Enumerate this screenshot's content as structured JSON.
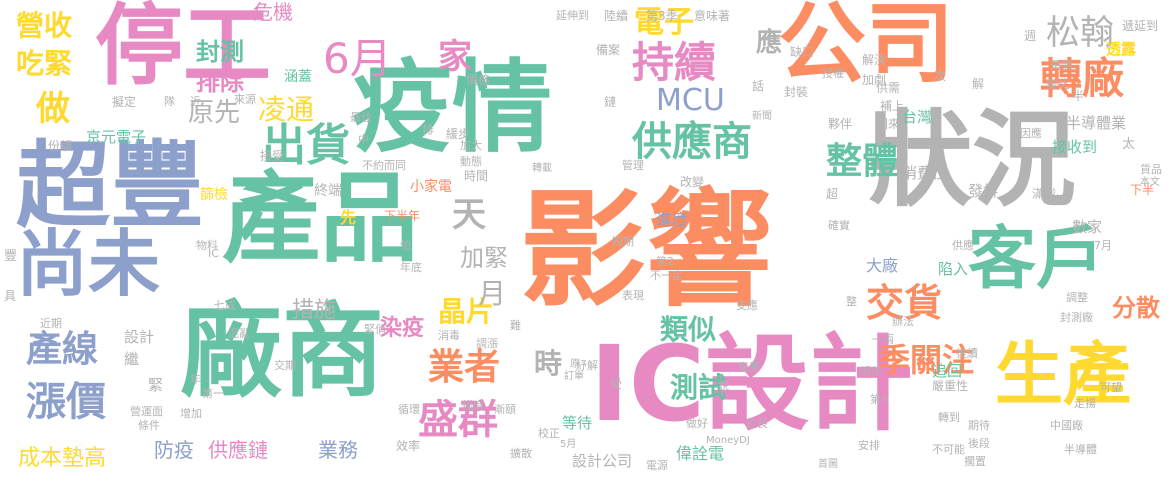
{
  "palette": {
    "green": "#66c2a5",
    "orange": "#fc8d62",
    "blue": "#8da0cb",
    "pink": "#e78ac3",
    "lime": "#a6d854",
    "yellow": "#ffd92f",
    "tan": "#e5c494",
    "gray": "#b3b3b3"
  },
  "words": [
    {
      "t": "影響",
      "c": "orange"
    },
    {
      "t": "疫情",
      "c": "green"
    },
    {
      "t": "狀況",
      "c": "gray"
    },
    {
      "t": "產品",
      "c": "green"
    },
    {
      "t": "超豐",
      "c": "blue"
    },
    {
      "t": "停工",
      "c": "pink"
    },
    {
      "t": "公司",
      "c": "orange"
    },
    {
      "t": "廠商",
      "c": "green"
    },
    {
      "t": "IC設計",
      "c": "pink"
    },
    {
      "t": "客戶",
      "c": "green"
    },
    {
      "t": "尚未",
      "c": "blue"
    },
    {
      "t": "生產",
      "c": "yellow"
    },
    {
      "t": "轉廠",
      "c": "orange"
    },
    {
      "t": "持續",
      "c": "pink"
    },
    {
      "t": "供應商",
      "c": "green"
    },
    {
      "t": "MCU",
      "c": "blue"
    },
    {
      "t": "電子",
      "c": "yellow"
    },
    {
      "t": "出貨",
      "c": "green"
    },
    {
      "t": "凌通",
      "c": "yellow"
    },
    {
      "t": "6月",
      "c": "pink"
    },
    {
      "t": "松翰",
      "c": "gray"
    },
    {
      "t": "業者",
      "c": "orange"
    },
    {
      "t": "盛群",
      "c": "pink"
    },
    {
      "t": "測試",
      "c": "green"
    },
    {
      "t": "季關注",
      "c": "orange"
    },
    {
      "t": "交貨",
      "c": "orange"
    },
    {
      "t": "產線",
      "c": "blue"
    },
    {
      "t": "漲價",
      "c": "blue"
    },
    {
      "t": "整體",
      "c": "green"
    },
    {
      "t": "營收",
      "c": "yellow"
    },
    {
      "t": "做",
      "c": "yellow"
    },
    {
      "t": "封測",
      "c": "green"
    },
    {
      "t": "排除",
      "c": "pink"
    },
    {
      "t": "吃緊",
      "c": "yellow"
    },
    {
      "t": "家",
      "c": "pink"
    },
    {
      "t": "原先",
      "c": "gray"
    },
    {
      "t": "天",
      "c": "gray"
    },
    {
      "t": "危機",
      "c": "pink"
    },
    {
      "t": "應",
      "c": "gray"
    },
    {
      "t": "晶片",
      "c": "yellow"
    },
    {
      "t": "類似",
      "c": "green"
    },
    {
      "t": "加緊",
      "c": "gray"
    },
    {
      "t": "月",
      "c": "gray"
    },
    {
      "t": "措施",
      "c": "gray"
    },
    {
      "t": "染疫",
      "c": "pink"
    },
    {
      "t": "時",
      "c": "gray"
    },
    {
      "t": "分散",
      "c": "orange"
    },
    {
      "t": "成本墊高",
      "c": "yellow"
    },
    {
      "t": "防疫",
      "c": "blue"
    },
    {
      "t": "供應鏈",
      "c": "pink"
    },
    {
      "t": "業務",
      "c": "blue"
    },
    {
      "t": "京元電子",
      "c": "green"
    },
    {
      "t": "半導體業",
      "c": "gray"
    },
    {
      "t": "接收到",
      "c": "green"
    },
    {
      "t": "台灣",
      "c": "green"
    },
    {
      "t": "設計公司",
      "c": "gray"
    },
    {
      "t": "偉詮電",
      "c": "green"
    },
    {
      "t": "等待",
      "c": "green"
    },
    {
      "t": "進度",
      "c": "blue"
    },
    {
      "t": "大廠",
      "c": "blue"
    },
    {
      "t": "陷入",
      "c": "green"
    },
    {
      "t": "發抖",
      "c": "gray"
    },
    {
      "t": "數家",
      "c": "gray"
    },
    {
      "t": "消費性",
      "c": "gray"
    },
    {
      "t": "終端",
      "c": "gray"
    },
    {
      "t": "篩檢",
      "c": "yellow"
    },
    {
      "t": "小家電",
      "c": "orange"
    },
    {
      "t": "先",
      "c": "yellow"
    },
    {
      "t": "下半年",
      "c": "orange"
    },
    {
      "t": "下半",
      "c": "orange"
    },
    {
      "t": "追回",
      "c": "green"
    },
    {
      "t": "設計",
      "c": "gray"
    },
    {
      "t": "繼",
      "c": "gray"
    },
    {
      "t": "緊",
      "c": "gray"
    },
    {
      "t": "涵蓋",
      "c": "green"
    },
    {
      "t": "陸續",
      "c": "gray"
    },
    {
      "t": "第3季",
      "c": "gray"
    },
    {
      "t": "意味著",
      "c": "gray"
    },
    {
      "t": "延伸到",
      "c": "gray"
    },
    {
      "t": "備案",
      "c": "gray"
    },
    {
      "t": "缺口",
      "c": "gray"
    },
    {
      "t": "解決",
      "c": "gray"
    },
    {
      "t": "加劇",
      "c": "gray"
    },
    {
      "t": "透露",
      "c": "yellow"
    },
    {
      "t": "預期",
      "c": "gray"
    },
    {
      "t": "週",
      "c": "gray"
    },
    {
      "t": "遞延到",
      "c": "gray"
    },
    {
      "t": "半",
      "c": "gray"
    },
    {
      "t": "變化",
      "c": "gray"
    },
    {
      "t": "供需",
      "c": "gray"
    },
    {
      "t": "補上",
      "c": "gray"
    },
    {
      "t": "回來",
      "c": "gray"
    },
    {
      "t": "夥伴",
      "c": "gray"
    },
    {
      "t": "授權",
      "c": "gray"
    },
    {
      "t": "次",
      "c": "gray"
    },
    {
      "t": "解",
      "c": "gray"
    },
    {
      "t": "因應",
      "c": "gray"
    },
    {
      "t": "挑戰",
      "c": "gray"
    },
    {
      "t": "太",
      "c": "gray"
    },
    {
      "t": "貨品",
      "c": "gray"
    },
    {
      "t": "本文",
      "c": "gray"
    },
    {
      "t": "多元",
      "c": "gray"
    },
    {
      "t": "封裝",
      "c": "gray"
    },
    {
      "t": "新聞",
      "c": "gray"
    },
    {
      "t": "鏈",
      "c": "gray"
    },
    {
      "t": "話",
      "c": "gray"
    },
    {
      "t": "價格",
      "c": "gray"
    },
    {
      "t": "最佳",
      "c": "gray"
    },
    {
      "t": "擬定",
      "c": "gray"
    },
    {
      "t": "隊",
      "c": "gray"
    },
    {
      "t": "近",
      "c": "gray"
    },
    {
      "t": "來源",
      "c": "gray"
    },
    {
      "t": "份額",
      "c": "gray"
    },
    {
      "t": "中",
      "c": "gray"
    },
    {
      "t": "接受",
      "c": "gray"
    },
    {
      "t": "加大",
      "c": "gray"
    },
    {
      "t": "動態",
      "c": "gray"
    },
    {
      "t": "緩步",
      "c": "gray"
    },
    {
      "t": "排",
      "c": "gray"
    },
    {
      "t": "不約而同",
      "c": "gray"
    },
    {
      "t": "時間",
      "c": "gray"
    },
    {
      "t": "轉載",
      "c": "gray"
    },
    {
      "t": "管理",
      "c": "gray"
    },
    {
      "t": "改變",
      "c": "gray"
    },
    {
      "t": "超",
      "c": "gray"
    },
    {
      "t": "滿載",
      "c": "gray"
    },
    {
      "t": "確實",
      "c": "gray"
    },
    {
      "t": "短期",
      "c": "gray"
    },
    {
      "t": "第2",
      "c": "gray"
    },
    {
      "t": "不一定",
      "c": "gray"
    },
    {
      "t": "表現",
      "c": "gray"
    },
    {
      "t": "支應",
      "c": "gray"
    },
    {
      "t": "整",
      "c": "gray"
    },
    {
      "t": "供應",
      "c": "gray"
    },
    {
      "t": "7月",
      "c": "gray"
    },
    {
      "t": "調整",
      "c": "gray"
    },
    {
      "t": "封測廠",
      "c": "gray"
    },
    {
      "t": "物料",
      "c": "gray"
    },
    {
      "t": "怕",
      "c": "gray"
    },
    {
      "t": "年底",
      "c": "gray"
    },
    {
      "t": "豐",
      "c": "gray"
    },
    {
      "t": "具",
      "c": "gray"
    },
    {
      "t": "IC",
      "c": "gray"
    },
    {
      "t": "七成",
      "c": "gray"
    },
    {
      "t": "混亂",
      "c": "gray"
    },
    {
      "t": "緊俏",
      "c": "gray"
    },
    {
      "t": "消毒",
      "c": "gray"
    },
    {
      "t": "難",
      "c": "gray"
    },
    {
      "t": "近期",
      "c": "gray"
    },
    {
      "t": "調漲",
      "c": "gray"
    },
    {
      "t": "交期",
      "c": "gray"
    },
    {
      "t": "紓解",
      "c": "gray"
    },
    {
      "t": "受",
      "c": "gray"
    },
    {
      "t": "復原",
      "c": "gray"
    },
    {
      "t": "說",
      "c": "gray"
    },
    {
      "t": "一兩",
      "c": "gray"
    },
    {
      "t": "辦法",
      "c": "gray"
    },
    {
      "t": "明年",
      "c": "gray"
    },
    {
      "t": "後續",
      "c": "gray"
    },
    {
      "t": "嚴重性",
      "c": "gray"
    },
    {
      "t": "可望",
      "c": "gray"
    },
    {
      "t": "走揚",
      "c": "gray"
    },
    {
      "t": "年",
      "c": "gray"
    },
    {
      "t": "第一",
      "c": "gray"
    },
    {
      "t": "增加",
      "c": "gray"
    },
    {
      "t": "營運面",
      "c": "gray"
    },
    {
      "t": "條件",
      "c": "gray"
    },
    {
      "t": "循環",
      "c": "gray"
    },
    {
      "t": "幅度",
      "c": "gray"
    },
    {
      "t": "漸頤",
      "c": "gray"
    },
    {
      "t": "訂單",
      "c": "gray"
    },
    {
      "t": "原",
      "c": "gray"
    },
    {
      "t": "效率",
      "c": "gray"
    },
    {
      "t": "擴散",
      "c": "gray"
    },
    {
      "t": "5月",
      "c": "gray"
    },
    {
      "t": "校正",
      "c": "gray"
    },
    {
      "t": "電源",
      "c": "gray"
    },
    {
      "t": "做好",
      "c": "gray"
    },
    {
      "t": "拉長",
      "c": "gray"
    },
    {
      "t": "MoneyDJ",
      "c": "gray"
    },
    {
      "t": "首圖",
      "c": "gray"
    },
    {
      "t": "安排",
      "c": "gray"
    },
    {
      "t": "第3",
      "c": "gray"
    },
    {
      "t": "轉到",
      "c": "gray"
    },
    {
      "t": "期待",
      "c": "gray"
    },
    {
      "t": "後段",
      "c": "gray"
    },
    {
      "t": "不可能",
      "c": "gray"
    },
    {
      "t": "中國廠",
      "c": "gray"
    },
    {
      "t": "半導體",
      "c": "gray"
    },
    {
      "t": "擱置",
      "c": "gray"
    }
  ]
}
